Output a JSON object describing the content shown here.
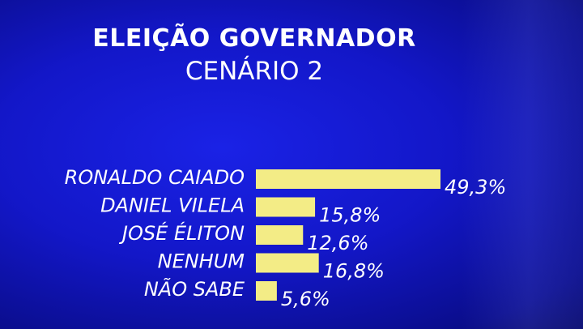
{
  "chart_data": {
    "type": "bar",
    "orientation": "horizontal",
    "title": "ELEIÇÃO GOVERNADOR",
    "subtitle": "CENÁRIO 2",
    "categories": [
      "RONALDO CAIADO",
      "DANIEL VILELA",
      "JOSÉ ÉLITON",
      "NENHUM",
      "NÃO SABE"
    ],
    "values": [
      49.3,
      15.8,
      12.6,
      16.8,
      5.6
    ],
    "value_labels": [
      "49,3%",
      "15,8%",
      "12,6%",
      "16,8%",
      "5,6%"
    ],
    "xlim": [
      0,
      50
    ],
    "grid": false,
    "legend": "none"
  },
  "colors": {
    "background": "#1317c8",
    "bar": "#f3ec86",
    "text": "#ffffff"
  }
}
